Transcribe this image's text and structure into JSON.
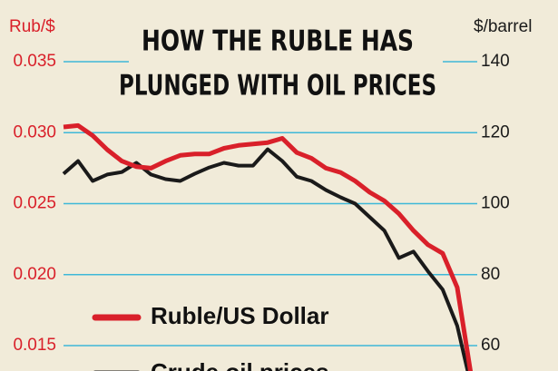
{
  "chart_data": {
    "type": "line",
    "title": "HOW THE RUBLE HAS",
    "subtitle": "PLUNGED WITH OIL PRICES",
    "y_label": "Rub/$",
    "y2_label": "$/barrel",
    "ylim": [
      0.015,
      0.035
    ],
    "yticks": [
      {
        "value": 0.035,
        "label": "0.035"
      },
      {
        "value": 0.03,
        "label": "0.030"
      },
      {
        "value": 0.025,
        "label": "0.025"
      },
      {
        "value": 0.02,
        "label": "0.020"
      },
      {
        "value": 0.015,
        "label": "0.015"
      }
    ],
    "y2lim": [
      60,
      140
    ],
    "y2ticks": [
      140,
      120,
      100,
      80,
      60
    ],
    "grid": true,
    "grid_color": "#3fb8d8",
    "series": [
      {
        "name": "Ruble/US Dollar",
        "color": "#d9202a",
        "values": [
          0.0304,
          0.0305,
          0.0298,
          0.0288,
          0.028,
          0.0276,
          0.0275,
          0.028,
          0.0284,
          0.0285,
          0.0285,
          0.0289,
          0.0291,
          0.0292,
          0.0293,
          0.0296,
          0.0286,
          0.0282,
          0.0275,
          0.0272,
          0.0266,
          0.0258,
          0.0252,
          0.0243,
          0.0231,
          0.0221,
          0.0215,
          0.0191,
          0.0126
        ]
      },
      {
        "name": "Crude oil prices",
        "color": "#1a1a1a",
        "axis": "y2",
        "values": [
          108.4,
          112.0,
          106.4,
          108.2,
          108.9,
          111.5,
          108.2,
          106.9,
          106.4,
          108.4,
          110.2,
          111.5,
          110.7,
          110.7,
          115.3,
          112.0,
          107.6,
          106.4,
          103.8,
          101.8,
          100.0,
          96.2,
          92.4,
          84.7,
          86.5,
          80.9,
          75.8,
          65.6,
          47.8
        ]
      }
    ]
  }
}
